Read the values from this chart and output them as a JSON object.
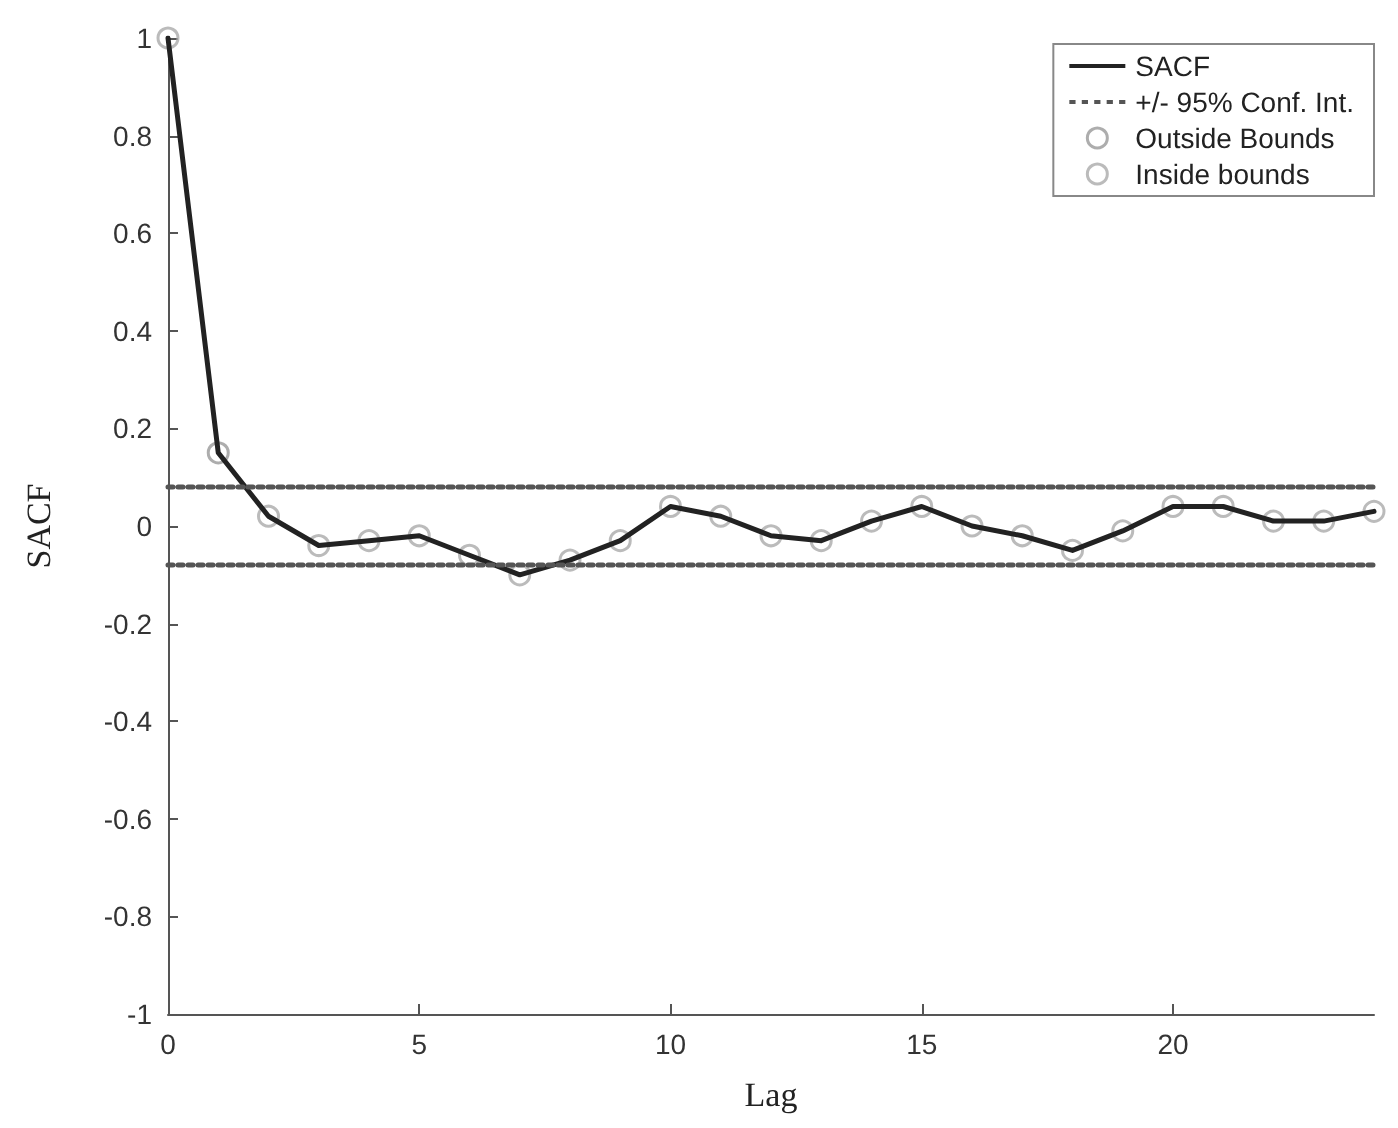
{
  "chart_data": {
    "type": "line",
    "xlabel": "Lag",
    "ylabel": "SACF",
    "xlim": [
      0,
      24
    ],
    "xticks": [
      0,
      5,
      10,
      15,
      20
    ],
    "ylim": [
      -1,
      1
    ],
    "yticks": [
      -1,
      -0.8,
      -0.6,
      -0.4,
      -0.2,
      0,
      0.2,
      0.4,
      0.6,
      0.8,
      1
    ],
    "grid": false,
    "legend": "top right",
    "series": [
      {
        "name": "SACF",
        "color": "#222222",
        "marker": "none",
        "line_style": "solid",
        "x": [
          0,
          1,
          2,
          3,
          4,
          5,
          6,
          7,
          8,
          9,
          10,
          11,
          12,
          13,
          14,
          15,
          16,
          17,
          18,
          19,
          20,
          21,
          22,
          23,
          24
        ],
        "values": [
          1,
          0.15,
          0.02,
          -0.04,
          -0.03,
          -0.02,
          -0.06,
          -0.1,
          -0.07,
          -0.03,
          0.04,
          0.02,
          -0.02,
          -0.03,
          0.01,
          0.04,
          0.0,
          -0.02,
          -0.05,
          -0.01,
          0.04,
          0.04,
          0.01,
          0.01,
          0.03
        ]
      },
      {
        "name": "+/- 95% Conf. Int.",
        "color": "#555555",
        "marker": "none",
        "line_style": "dotted",
        "x": [
          0,
          24
        ],
        "values": [
          0.08,
          0.08
        ]
      },
      {
        "color": "#555555",
        "marker": "none",
        "line_style": "dotted",
        "x": [
          0,
          24
        ],
        "values": [
          -0.08,
          -0.08
        ]
      },
      {
        "name": "Outside Bounds",
        "type": "scatter",
        "color": "#999999",
        "marker": "circle",
        "x": [
          1
        ],
        "values": [
          0.15
        ]
      },
      {
        "name": "Inside bounds",
        "type": "scatter",
        "color": "#aaaaaa",
        "marker": "circle",
        "x": [
          0,
          2,
          3,
          4,
          5,
          6,
          7,
          8,
          9,
          10,
          11,
          12,
          13,
          14,
          15,
          16,
          17,
          18,
          19,
          20,
          21,
          22,
          23,
          24
        ],
        "values": [
          1,
          0.02,
          -0.04,
          -0.03,
          -0.02,
          -0.06,
          -0.1,
          -0.07,
          -0.03,
          0.04,
          0.02,
          -0.02,
          -0.03,
          0.01,
          0.04,
          0.0,
          -0.02,
          -0.05,
          -0.01,
          0.04,
          0.04,
          0.01,
          0.01,
          0.03
        ]
      }
    ]
  }
}
